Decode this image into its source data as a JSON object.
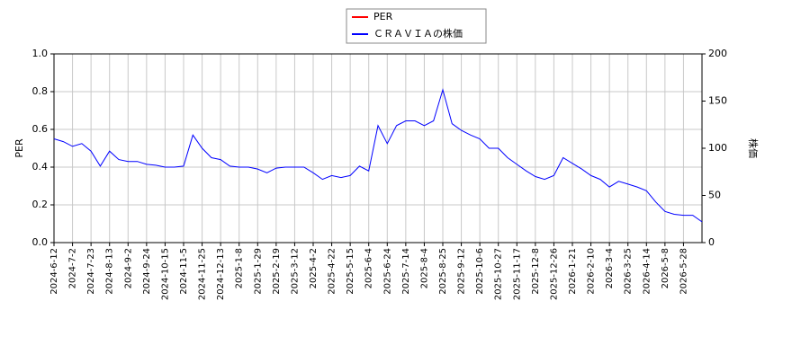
{
  "chart_data": {
    "type": "line",
    "y_label": "PER",
    "y2_label": "株価",
    "categories": [
      "2024-6-12",
      null,
      "2024-7-2",
      null,
      "2024-7-23",
      null,
      "2024-8-13",
      null,
      "2024-9-2",
      null,
      "2024-9-24",
      null,
      "2024-10-15",
      null,
      "2024-11-5",
      null,
      "2024-11-25",
      null,
      "2024-12-13",
      null,
      "2025-1-8",
      null,
      "2025-1-29",
      null,
      "2025-2-19",
      null,
      "2025-3-12",
      null,
      "2025-4-2",
      null,
      "2025-4-22",
      null,
      "2025-5-15",
      null,
      "2025-6-4",
      null,
      "2025-6-24",
      null,
      "2025-7-14",
      null,
      "2025-8-4",
      null,
      "2025-8-25",
      null,
      "2025-9-12",
      null,
      "2025-10-6",
      null,
      "2025-10-27",
      null,
      "2025-11-17",
      null,
      "2025-12-8",
      null,
      "2025-12-26",
      null,
      "2026-1-21",
      null,
      "2026-2-10",
      null,
      "2026-3-4",
      null,
      "2026-3-25",
      null,
      "2026-4-14",
      null,
      "2026-5-8",
      null,
      "2026-5-28",
      null,
      null
    ],
    "series": [
      {
        "name": "PER",
        "color": "#ff0000",
        "values": [
          null,
          null,
          null,
          null,
          null,
          null,
          null,
          null,
          null,
          null,
          null,
          null,
          null,
          null,
          null,
          null,
          null,
          null,
          null,
          null,
          null,
          null,
          null,
          null,
          null,
          null,
          null,
          null,
          null,
          null,
          null,
          null,
          null,
          null,
          null,
          null,
          null,
          null,
          null,
          null,
          null,
          null,
          null,
          null,
          null,
          null,
          null,
          null,
          null,
          null,
          null,
          null,
          null,
          null,
          null,
          null,
          null,
          null,
          null,
          null,
          null,
          null,
          null,
          null,
          null,
          null,
          null,
          null,
          null,
          null,
          null
        ]
      },
      {
        "name": "ＣＲＡＶＩＡの株価",
        "color": "#0000ff",
        "axis": "y2",
        "values": [
          110,
          107,
          102,
          105,
          97,
          81,
          97,
          88,
          86,
          86,
          83,
          82,
          80,
          80,
          81,
          114,
          100,
          90,
          88,
          81,
          80,
          80,
          78,
          74,
          79,
          80,
          80,
          80,
          74,
          67,
          71,
          69,
          71,
          81,
          76,
          124,
          105,
          124,
          129,
          129,
          124,
          129,
          162,
          126,
          119,
          114,
          110,
          100,
          100,
          90,
          83,
          76,
          70,
          67,
          71,
          90,
          84,
          78,
          71,
          67,
          59,
          65,
          62,
          59,
          55,
          43,
          33,
          30,
          29,
          29,
          22
        ]
      }
    ],
    "ylim": [
      0,
      1
    ],
    "yticks": [
      {
        "value": 0,
        "label": "0.0"
      },
      0.2,
      0.4,
      0.6,
      0.8,
      {
        "value": 1,
        "label": "1.0"
      }
    ],
    "y2lim": [
      0,
      200
    ],
    "y2ticks": [
      0,
      50,
      100,
      150,
      200
    ],
    "grid": true,
    "legend": "top"
  }
}
